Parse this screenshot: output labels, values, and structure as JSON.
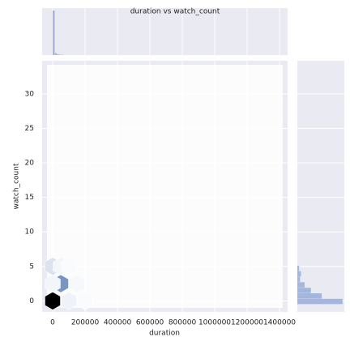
{
  "chart_data": {
    "type": "hexbin",
    "title": "duration vs watch_count",
    "xlabel": "duration",
    "ylabel": "watch_count",
    "xlim": [
      -65000,
      1450000
    ],
    "ylim": [
      -1.6,
      34.8
    ],
    "xticks": [
      0,
      200000,
      400000,
      600000,
      800000,
      1000000,
      1200000,
      1400000
    ],
    "yticks": [
      0,
      5,
      10,
      15,
      20,
      25,
      30
    ],
    "grid": true,
    "colormap": [
      "#ffffff",
      "#4c72b0",
      "#000000"
    ],
    "hexes": {
      "x": [
        0,
        50000,
        0,
        50000,
        100000,
        150000,
        200000,
        0,
        100000,
        250000
      ],
      "y": [
        0,
        2.5,
        5,
        5,
        0,
        2.5,
        0,
        2.5,
        5,
        2.5
      ],
      "counts": [
        400,
        150,
        40,
        12,
        18,
        10,
        6,
        14,
        6,
        4
      ]
    },
    "x_hist": {
      "color": "#a4b6dd",
      "bins": [
        0,
        14000,
        28000,
        42000,
        56000,
        70000
      ],
      "counts": [
        900,
        40,
        15,
        8,
        5
      ],
      "count_lim": [
        0,
        950
      ]
    },
    "y_hist": {
      "color": "#a4b6dd",
      "bins": [
        -0.5,
        0.3,
        1.1,
        1.9,
        2.7,
        3.5,
        4.3,
        5.1
      ],
      "counts": [
        500,
        270,
        150,
        80,
        30,
        40,
        20
      ],
      "count_lim": [
        0,
        520
      ]
    }
  }
}
